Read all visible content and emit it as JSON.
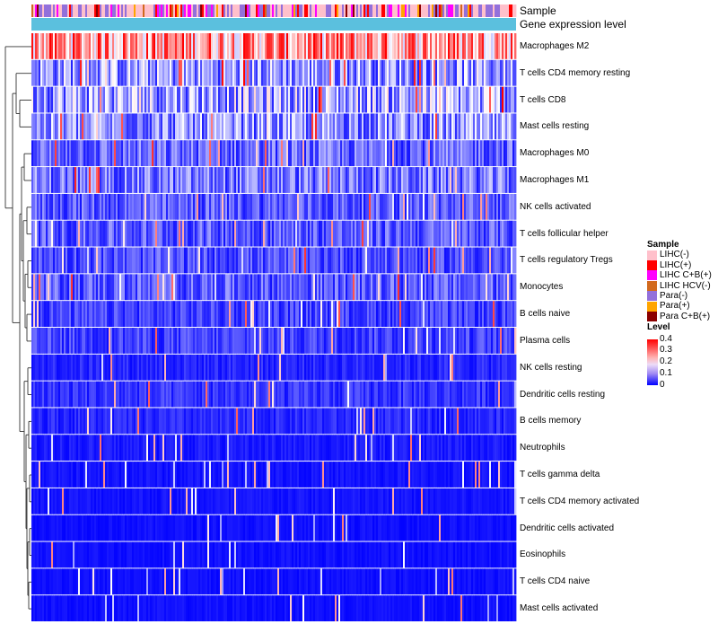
{
  "chart_data": {
    "type": "heatmap",
    "title": "",
    "annotation_tracks": [
      "Sample",
      "Gene expression level"
    ],
    "row_labels": [
      "Macrophages M2",
      "T cells CD4 memory resting",
      "T cells CD8",
      "Mast cells resting",
      "Macrophages M0",
      "Macrophages M1",
      "NK cells activated",
      "T cells follicular helper",
      "T cells regulatory  Tregs",
      "Monocytes",
      "B cells naive",
      "Plasma cells",
      "NK cells resting",
      "Dendritic cells resting",
      "B cells memory",
      "Neutrophils",
      "T cells gamma delta",
      "T cells CD4 memory activated",
      "Dendritic cells activated",
      "Eosinophils",
      "T cells CD4 naive",
      "Mast cells activated"
    ],
    "row_mean_levels": [
      0.26,
      0.12,
      0.13,
      0.11,
      0.08,
      0.09,
      0.07,
      0.07,
      0.06,
      0.07,
      0.05,
      0.05,
      0.03,
      0.04,
      0.03,
      0.02,
      0.015,
      0.015,
      0.012,
      0.012,
      0.012,
      0.012
    ],
    "row_label_gaps": [
      [
        0.15,
        0.55
      ]
    ],
    "sample_legend": {
      "title": "Sample",
      "items": [
        {
          "label": "LIHC(-)",
          "color": "#ffc0cb"
        },
        {
          "label": "LIHC(+)",
          "color": "#ff0000"
        },
        {
          "label": "LIHC C+B(+)",
          "color": "#ff00ff"
        },
        {
          "label": "LIHC HCV(-)",
          "color": "#d2691e"
        },
        {
          "label": "Para(-)",
          "color": "#9370db"
        },
        {
          "label": "Para(+)",
          "color": "#ffa500"
        },
        {
          "label": "Para C+B(+)",
          "color": "#8b0000"
        }
      ]
    },
    "level_legend": {
      "title": "Level",
      "ticks": [
        "0.4",
        "0.3",
        "0.2",
        "0.1",
        "0"
      ],
      "range": [
        0,
        0.4
      ],
      "colors": [
        "#0000ff",
        "#ffffff",
        "#ff0000"
      ]
    },
    "gene_expression_track_color": "#5bc0de",
    "dendrogram_order": "rows clustered; Macrophages M2 most distinct"
  }
}
